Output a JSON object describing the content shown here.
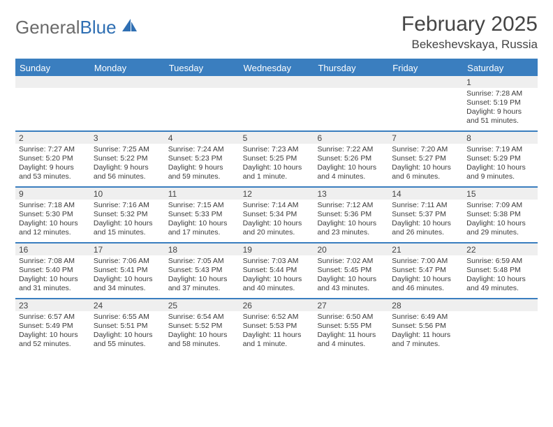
{
  "brand": {
    "part1": "General",
    "part2": "Blue"
  },
  "title": "February 2025",
  "location": "Bekeshevskaya, Russia",
  "colors": {
    "accent": "#3a7ebf",
    "logo_gray": "#6a6a6a",
    "text": "#3b3b3b",
    "header_bar_bg": "#efefef"
  },
  "day_names": [
    "Sunday",
    "Monday",
    "Tuesday",
    "Wednesday",
    "Thursday",
    "Friday",
    "Saturday"
  ],
  "weeks": [
    [
      {
        "day": "",
        "sunrise": "",
        "sunset": "",
        "daylight": ""
      },
      {
        "day": "",
        "sunrise": "",
        "sunset": "",
        "daylight": ""
      },
      {
        "day": "",
        "sunrise": "",
        "sunset": "",
        "daylight": ""
      },
      {
        "day": "",
        "sunrise": "",
        "sunset": "",
        "daylight": ""
      },
      {
        "day": "",
        "sunrise": "",
        "sunset": "",
        "daylight": ""
      },
      {
        "day": "",
        "sunrise": "",
        "sunset": "",
        "daylight": ""
      },
      {
        "day": "1",
        "sunrise": "Sunrise: 7:28 AM",
        "sunset": "Sunset: 5:19 PM",
        "daylight": "Daylight: 9 hours and 51 minutes."
      }
    ],
    [
      {
        "day": "2",
        "sunrise": "Sunrise: 7:27 AM",
        "sunset": "Sunset: 5:20 PM",
        "daylight": "Daylight: 9 hours and 53 minutes."
      },
      {
        "day": "3",
        "sunrise": "Sunrise: 7:25 AM",
        "sunset": "Sunset: 5:22 PM",
        "daylight": "Daylight: 9 hours and 56 minutes."
      },
      {
        "day": "4",
        "sunrise": "Sunrise: 7:24 AM",
        "sunset": "Sunset: 5:23 PM",
        "daylight": "Daylight: 9 hours and 59 minutes."
      },
      {
        "day": "5",
        "sunrise": "Sunrise: 7:23 AM",
        "sunset": "Sunset: 5:25 PM",
        "daylight": "Daylight: 10 hours and 1 minute."
      },
      {
        "day": "6",
        "sunrise": "Sunrise: 7:22 AM",
        "sunset": "Sunset: 5:26 PM",
        "daylight": "Daylight: 10 hours and 4 minutes."
      },
      {
        "day": "7",
        "sunrise": "Sunrise: 7:20 AM",
        "sunset": "Sunset: 5:27 PM",
        "daylight": "Daylight: 10 hours and 6 minutes."
      },
      {
        "day": "8",
        "sunrise": "Sunrise: 7:19 AM",
        "sunset": "Sunset: 5:29 PM",
        "daylight": "Daylight: 10 hours and 9 minutes."
      }
    ],
    [
      {
        "day": "9",
        "sunrise": "Sunrise: 7:18 AM",
        "sunset": "Sunset: 5:30 PM",
        "daylight": "Daylight: 10 hours and 12 minutes."
      },
      {
        "day": "10",
        "sunrise": "Sunrise: 7:16 AM",
        "sunset": "Sunset: 5:32 PM",
        "daylight": "Daylight: 10 hours and 15 minutes."
      },
      {
        "day": "11",
        "sunrise": "Sunrise: 7:15 AM",
        "sunset": "Sunset: 5:33 PM",
        "daylight": "Daylight: 10 hours and 17 minutes."
      },
      {
        "day": "12",
        "sunrise": "Sunrise: 7:14 AM",
        "sunset": "Sunset: 5:34 PM",
        "daylight": "Daylight: 10 hours and 20 minutes."
      },
      {
        "day": "13",
        "sunrise": "Sunrise: 7:12 AM",
        "sunset": "Sunset: 5:36 PM",
        "daylight": "Daylight: 10 hours and 23 minutes."
      },
      {
        "day": "14",
        "sunrise": "Sunrise: 7:11 AM",
        "sunset": "Sunset: 5:37 PM",
        "daylight": "Daylight: 10 hours and 26 minutes."
      },
      {
        "day": "15",
        "sunrise": "Sunrise: 7:09 AM",
        "sunset": "Sunset: 5:38 PM",
        "daylight": "Daylight: 10 hours and 29 minutes."
      }
    ],
    [
      {
        "day": "16",
        "sunrise": "Sunrise: 7:08 AM",
        "sunset": "Sunset: 5:40 PM",
        "daylight": "Daylight: 10 hours and 31 minutes."
      },
      {
        "day": "17",
        "sunrise": "Sunrise: 7:06 AM",
        "sunset": "Sunset: 5:41 PM",
        "daylight": "Daylight: 10 hours and 34 minutes."
      },
      {
        "day": "18",
        "sunrise": "Sunrise: 7:05 AM",
        "sunset": "Sunset: 5:43 PM",
        "daylight": "Daylight: 10 hours and 37 minutes."
      },
      {
        "day": "19",
        "sunrise": "Sunrise: 7:03 AM",
        "sunset": "Sunset: 5:44 PM",
        "daylight": "Daylight: 10 hours and 40 minutes."
      },
      {
        "day": "20",
        "sunrise": "Sunrise: 7:02 AM",
        "sunset": "Sunset: 5:45 PM",
        "daylight": "Daylight: 10 hours and 43 minutes."
      },
      {
        "day": "21",
        "sunrise": "Sunrise: 7:00 AM",
        "sunset": "Sunset: 5:47 PM",
        "daylight": "Daylight: 10 hours and 46 minutes."
      },
      {
        "day": "22",
        "sunrise": "Sunrise: 6:59 AM",
        "sunset": "Sunset: 5:48 PM",
        "daylight": "Daylight: 10 hours and 49 minutes."
      }
    ],
    [
      {
        "day": "23",
        "sunrise": "Sunrise: 6:57 AM",
        "sunset": "Sunset: 5:49 PM",
        "daylight": "Daylight: 10 hours and 52 minutes."
      },
      {
        "day": "24",
        "sunrise": "Sunrise: 6:55 AM",
        "sunset": "Sunset: 5:51 PM",
        "daylight": "Daylight: 10 hours and 55 minutes."
      },
      {
        "day": "25",
        "sunrise": "Sunrise: 6:54 AM",
        "sunset": "Sunset: 5:52 PM",
        "daylight": "Daylight: 10 hours and 58 minutes."
      },
      {
        "day": "26",
        "sunrise": "Sunrise: 6:52 AM",
        "sunset": "Sunset: 5:53 PM",
        "daylight": "Daylight: 11 hours and 1 minute."
      },
      {
        "day": "27",
        "sunrise": "Sunrise: 6:50 AM",
        "sunset": "Sunset: 5:55 PM",
        "daylight": "Daylight: 11 hours and 4 minutes."
      },
      {
        "day": "28",
        "sunrise": "Sunrise: 6:49 AM",
        "sunset": "Sunset: 5:56 PM",
        "daylight": "Daylight: 11 hours and 7 minutes."
      },
      {
        "day": "",
        "sunrise": "",
        "sunset": "",
        "daylight": ""
      }
    ]
  ]
}
